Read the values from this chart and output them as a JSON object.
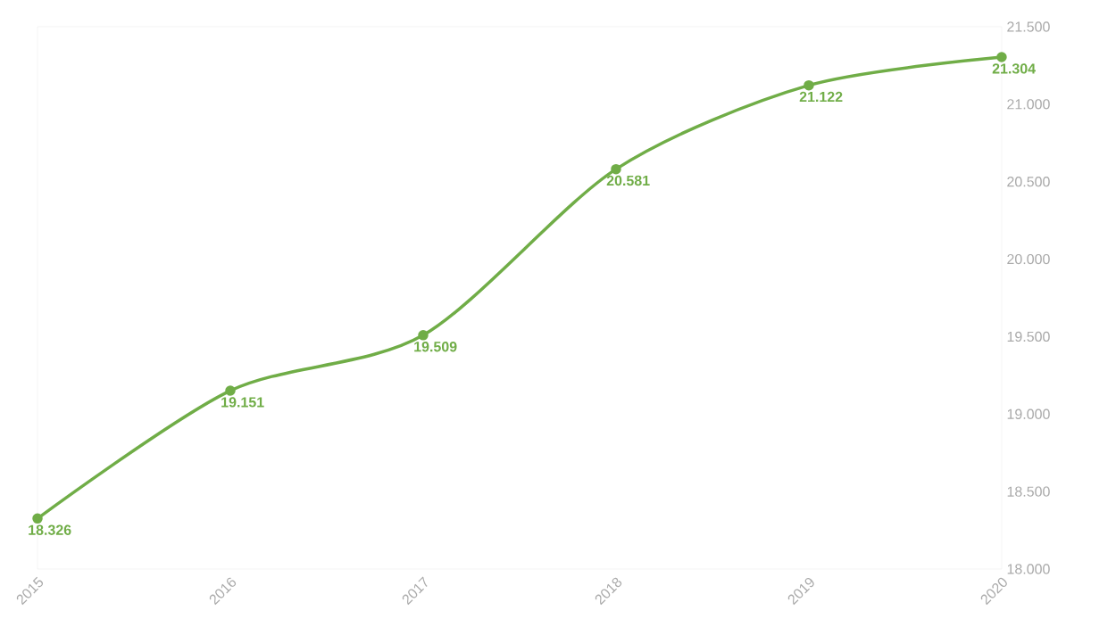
{
  "chart_data": {
    "type": "line",
    "categories": [
      "2015",
      "2016",
      "2017",
      "2018",
      "2019",
      "2020"
    ],
    "values": [
      18326,
      19151,
      19509,
      20581,
      21122,
      21304
    ],
    "value_labels": [
      "18.326",
      "19.151",
      "19.509",
      "20.581",
      "21.122",
      "21.304"
    ],
    "color": "#70ad47",
    "marker": "circle",
    "line_style": "solid",
    "grid": false,
    "ylim": [
      18000,
      21500
    ],
    "yticks": [
      {
        "value": 18000,
        "label": "18.000"
      },
      {
        "value": 18500,
        "label": "18.500"
      },
      {
        "value": 19000,
        "label": "19.000"
      },
      {
        "value": 19500,
        "label": "19.500"
      },
      {
        "value": 20000,
        "label": "20.000"
      },
      {
        "value": 20500,
        "label": "20.500"
      },
      {
        "value": 21000,
        "label": "21.000"
      },
      {
        "value": 21500,
        "label": "21.500"
      }
    ]
  }
}
